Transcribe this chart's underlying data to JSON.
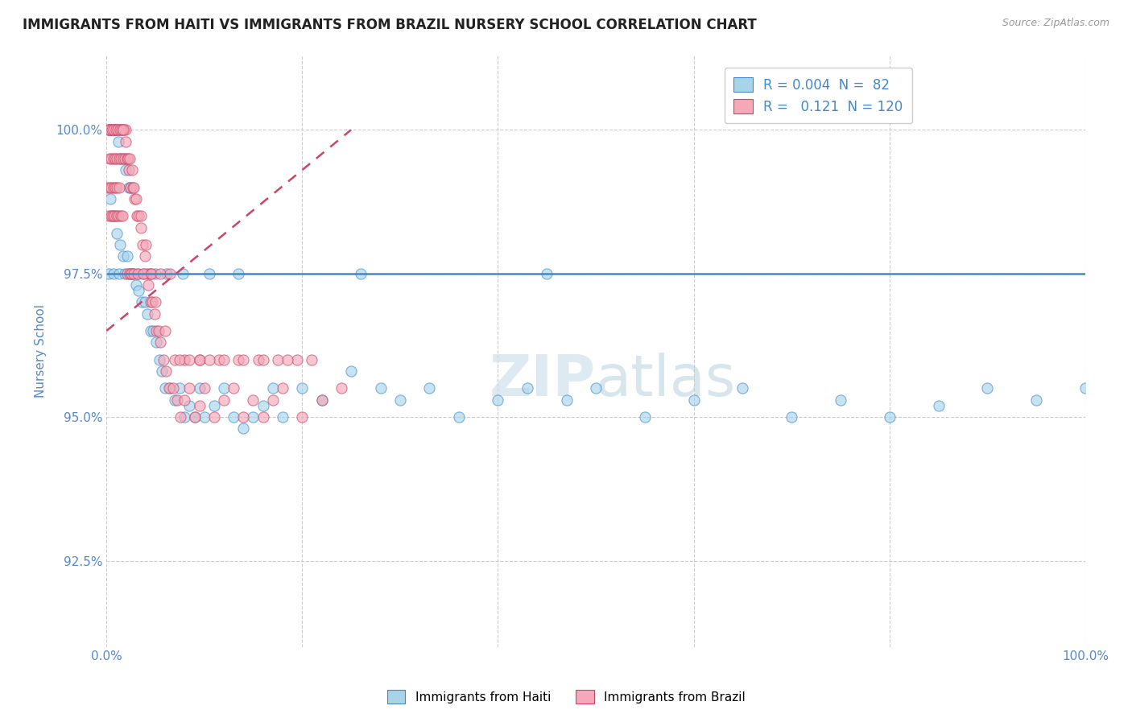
{
  "title": "IMMIGRANTS FROM HAITI VS IMMIGRANTS FROM BRAZIL NURSERY SCHOOL CORRELATION CHART",
  "source": "Source: ZipAtlas.com",
  "ylabel": "Nursery School",
  "xlim": [
    0.0,
    100.0
  ],
  "ylim": [
    91.0,
    101.3
  ],
  "yticks": [
    92.5,
    95.0,
    97.5,
    100.0
  ],
  "ytick_labels": [
    "92.5%",
    "95.0%",
    "97.5%",
    "100.0%"
  ],
  "xtick_labels": [
    "0.0%",
    "",
    "",
    "",
    "",
    "100.0%"
  ],
  "legend_haiti_R": "0.004",
  "legend_haiti_N": " 82",
  "legend_brazil_R": "0.121",
  "legend_brazil_N": "120",
  "color_haiti": "#a8d4ea",
  "color_brazil": "#f4a8b8",
  "color_trendline_haiti": "#4488cc",
  "color_trendline_brazil": "#cc4466",
  "color_axis_text": "#5588cc",
  "haiti_x": [
    0.3,
    0.5,
    0.8,
    1.0,
    1.2,
    1.5,
    1.8,
    2.0,
    2.3,
    2.5,
    0.4,
    0.6,
    0.9,
    1.1,
    1.4,
    1.7,
    2.1,
    2.4,
    2.7,
    3.0,
    3.3,
    3.6,
    3.9,
    4.2,
    4.5,
    4.8,
    5.1,
    5.4,
    5.7,
    6.0,
    6.5,
    7.0,
    7.5,
    8.0,
    8.5,
    9.0,
    9.5,
    10.0,
    11.0,
    12.0,
    13.0,
    14.0,
    15.0,
    16.0,
    17.0,
    18.0,
    20.0,
    22.0,
    25.0,
    28.0,
    30.0,
    33.0,
    36.0,
    40.0,
    43.0,
    47.0,
    50.0,
    55.0,
    60.0,
    65.0,
    70.0,
    75.0,
    80.0,
    85.0,
    90.0,
    95.0,
    100.0,
    0.2,
    0.7,
    1.3,
    1.9,
    2.6,
    3.2,
    3.8,
    4.4,
    5.0,
    6.2,
    7.8,
    10.5,
    13.5,
    26.0,
    45.0
  ],
  "haiti_y": [
    100.0,
    100.0,
    100.0,
    100.0,
    99.8,
    99.5,
    99.5,
    99.3,
    99.0,
    99.0,
    98.8,
    98.5,
    98.5,
    98.2,
    98.0,
    97.8,
    97.8,
    97.5,
    97.5,
    97.3,
    97.2,
    97.0,
    97.0,
    96.8,
    96.5,
    96.5,
    96.3,
    96.0,
    95.8,
    95.5,
    95.5,
    95.3,
    95.5,
    95.0,
    95.2,
    95.0,
    95.5,
    95.0,
    95.2,
    95.5,
    95.0,
    94.8,
    95.0,
    95.2,
    95.5,
    95.0,
    95.5,
    95.3,
    95.8,
    95.5,
    95.3,
    95.5,
    95.0,
    95.3,
    95.5,
    95.3,
    95.5,
    95.0,
    95.3,
    95.5,
    95.0,
    95.3,
    95.0,
    95.2,
    95.5,
    95.3,
    95.5,
    97.5,
    97.5,
    97.5,
    97.5,
    97.5,
    97.5,
    97.5,
    97.5,
    97.5,
    97.5,
    97.5,
    97.5,
    97.5,
    97.5,
    97.5
  ],
  "brazil_x": [
    0.2,
    0.4,
    0.6,
    0.8,
    1.0,
    1.2,
    1.4,
    1.6,
    1.8,
    2.0,
    0.3,
    0.5,
    0.7,
    0.9,
    1.1,
    1.3,
    1.5,
    1.7,
    1.9,
    2.1,
    2.3,
    2.5,
    2.7,
    2.9,
    3.1,
    3.3,
    3.5,
    3.7,
    3.9,
    4.1,
    4.3,
    4.5,
    4.7,
    4.9,
    5.1,
    5.3,
    5.5,
    5.8,
    6.1,
    6.4,
    6.8,
    7.2,
    7.6,
    8.0,
    8.5,
    9.0,
    9.5,
    10.0,
    11.0,
    12.0,
    13.0,
    14.0,
    15.0,
    16.0,
    17.0,
    18.0,
    20.0,
    22.0,
    24.0,
    0.15,
    0.35,
    0.55,
    0.75,
    0.95,
    1.15,
    1.35,
    1.55,
    1.75,
    2.0,
    2.2,
    2.4,
    2.6,
    2.8,
    3.0,
    3.5,
    4.0,
    4.5,
    5.0,
    6.0,
    7.0,
    8.0,
    9.5,
    11.5,
    13.5,
    15.5,
    17.5,
    19.5,
    0.25,
    0.45,
    0.65,
    0.85,
    1.05,
    1.25,
    1.45,
    1.65,
    2.15,
    2.35,
    2.55,
    2.75,
    3.2,
    3.8,
    4.6,
    5.5,
    6.5,
    7.5,
    8.5,
    9.5,
    10.5,
    12.0,
    14.0,
    16.0,
    18.5,
    21.0,
    0.1,
    0.3,
    0.5,
    0.7,
    0.9,
    1.1,
    1.3
  ],
  "brazil_y": [
    100.0,
    100.0,
    100.0,
    100.0,
    100.0,
    100.0,
    100.0,
    100.0,
    100.0,
    100.0,
    99.5,
    99.5,
    99.5,
    99.5,
    99.5,
    99.5,
    99.5,
    99.5,
    99.5,
    99.5,
    99.3,
    99.0,
    99.0,
    98.8,
    98.5,
    98.5,
    98.3,
    98.0,
    97.8,
    97.5,
    97.3,
    97.0,
    97.0,
    96.8,
    96.5,
    96.5,
    96.3,
    96.0,
    95.8,
    95.5,
    95.5,
    95.3,
    95.0,
    95.3,
    95.5,
    95.0,
    95.2,
    95.5,
    95.0,
    95.3,
    95.5,
    95.0,
    95.3,
    95.0,
    95.3,
    95.5,
    95.0,
    95.3,
    95.5,
    100.0,
    100.0,
    100.0,
    100.0,
    100.0,
    100.0,
    100.0,
    100.0,
    100.0,
    99.8,
    99.5,
    99.5,
    99.3,
    99.0,
    98.8,
    98.5,
    98.0,
    97.5,
    97.0,
    96.5,
    96.0,
    96.0,
    96.0,
    96.0,
    96.0,
    96.0,
    96.0,
    96.0,
    98.5,
    98.5,
    98.5,
    98.5,
    98.5,
    98.5,
    98.5,
    98.5,
    97.5,
    97.5,
    97.5,
    97.5,
    97.5,
    97.5,
    97.5,
    97.5,
    97.5,
    96.0,
    96.0,
    96.0,
    96.0,
    96.0,
    96.0,
    96.0,
    96.0,
    96.0,
    99.0,
    99.0,
    99.0,
    99.0,
    99.0,
    99.0,
    99.0
  ]
}
